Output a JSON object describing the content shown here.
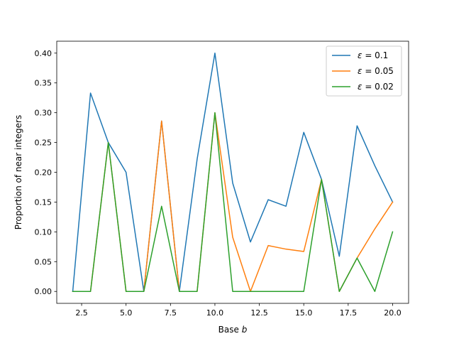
{
  "chart_data": {
    "type": "line",
    "title": "",
    "xlabel": "Base",
    "xlabel_var": "b",
    "ylabel": "Proportion of near integers",
    "xlim": [
      1.1,
      20.9
    ],
    "ylim": [
      -0.02,
      0.42
    ],
    "xticks": [
      2.5,
      5.0,
      7.5,
      10.0,
      12.5,
      15.0,
      17.5,
      20.0
    ],
    "xtick_labels": [
      "2.5",
      "5.0",
      "7.5",
      "10.0",
      "12.5",
      "15.0",
      "17.5",
      "20.0"
    ],
    "yticks": [
      0.0,
      0.05,
      0.1,
      0.15,
      0.2,
      0.25,
      0.3,
      0.35,
      0.4
    ],
    "ytick_labels": [
      "0.00",
      "0.05",
      "0.10",
      "0.15",
      "0.20",
      "0.25",
      "0.30",
      "0.35",
      "0.40"
    ],
    "grid": false,
    "legend_position": "top-right",
    "x": [
      2,
      3,
      4,
      5,
      6,
      7,
      8,
      9,
      10,
      11,
      12,
      13,
      14,
      15,
      16,
      17,
      18,
      19,
      20
    ],
    "series": [
      {
        "name_symbol": "ε",
        "name_value": " = 0.1",
        "color": "#1f77b4",
        "values": [
          0.0,
          0.333,
          0.25,
          0.2,
          0.0,
          0.286,
          0.0,
          0.222,
          0.4,
          0.182,
          0.083,
          0.154,
          0.143,
          0.267,
          0.188,
          0.059,
          0.278,
          0.211,
          0.15
        ]
      },
      {
        "name_symbol": "ε",
        "name_value": " = 0.05",
        "color": "#ff7f0e",
        "values": [
          0.0,
          0.0,
          0.25,
          0.0,
          0.0,
          0.286,
          0.0,
          0.0,
          0.3,
          0.091,
          0.0,
          0.077,
          0.071,
          0.067,
          0.188,
          0.0,
          0.056,
          0.105,
          0.15
        ]
      },
      {
        "name_symbol": "ε",
        "name_value": " = 0.02",
        "color": "#2ca02c",
        "values": [
          0.0,
          0.0,
          0.25,
          0.0,
          0.0,
          0.143,
          0.0,
          0.0,
          0.3,
          0.0,
          0.0,
          0.0,
          0.0,
          0.0,
          0.188,
          0.0,
          0.056,
          0.0,
          0.1
        ]
      }
    ]
  }
}
